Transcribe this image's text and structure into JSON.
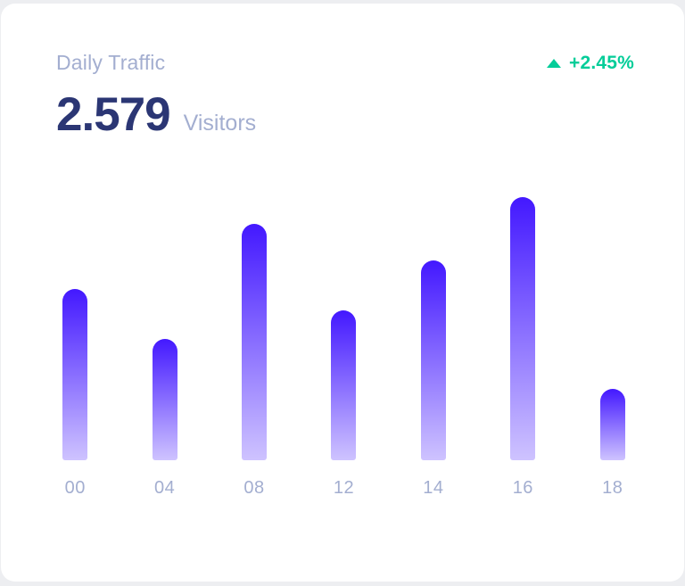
{
  "card": {
    "title": "Daily Traffic",
    "delta": "+2.45%",
    "delta_direction": "up",
    "value": "2.579",
    "value_unit": "Visitors"
  },
  "colors": {
    "title_gray": "#A3AED0",
    "value_navy": "#2B3674",
    "delta_green": "#05CD99",
    "bar_gradient_top": "#4318FF",
    "bar_gradient_bottom": "rgba(67,24,255,0.26)",
    "card_bg": "#FFFFFF",
    "page_bg": "#EDEEF1"
  },
  "icons": {
    "trend_up": "triangle-up"
  },
  "chart_data": {
    "type": "bar",
    "categories": [
      "00",
      "04",
      "08",
      "12",
      "14",
      "16",
      "18"
    ],
    "values": [
      65,
      46,
      90,
      57,
      76,
      100,
      27
    ],
    "title": "Daily Traffic",
    "xlabel": "",
    "ylabel": "",
    "ylim": [
      0,
      100
    ],
    "grid": false,
    "legend": false,
    "bar_corner": "rounded-top"
  }
}
